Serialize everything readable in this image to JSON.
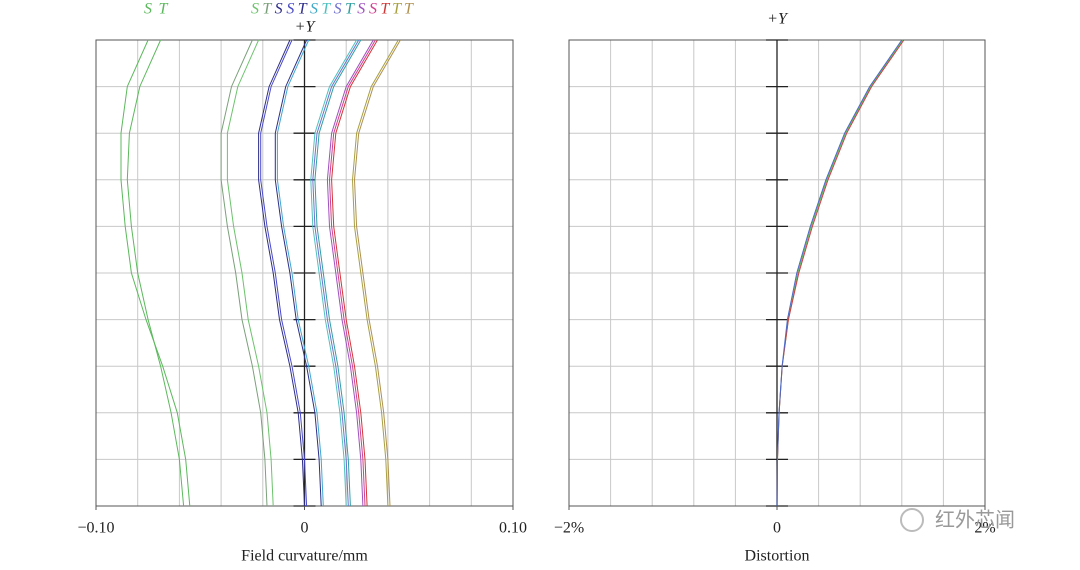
{
  "chart_data": [
    {
      "type": "line",
      "x_label": "Field curvature/mm",
      "axis_label": "+Y",
      "xlim": [
        -0.1,
        0.1
      ],
      "xticks": [
        {
          "value": -0.1,
          "label": "−0.10"
        },
        0,
        {
          "value": 0.1,
          "label": "0.10"
        }
      ],
      "ylim": [
        0,
        1
      ],
      "y": [
        0,
        0.1,
        0.2,
        0.3,
        0.4,
        0.5,
        0.6,
        0.7,
        0.8,
        0.9,
        1.0
      ],
      "grid": true,
      "series": [
        {
          "name": "S",
          "color": "#5cb85c",
          "values": [
            -0.055,
            -0.057,
            -0.061,
            -0.068,
            -0.076,
            -0.083,
            -0.086,
            -0.088,
            -0.088,
            -0.085,
            -0.075
          ]
        },
        {
          "name": "T",
          "color": "#5cb85c",
          "values": [
            -0.058,
            -0.06,
            -0.064,
            -0.069,
            -0.075,
            -0.08,
            -0.083,
            -0.085,
            -0.084,
            -0.079,
            -0.069
          ]
        },
        {
          "name": "S",
          "color": "#6cc36c",
          "values": [
            -0.015,
            -0.016,
            -0.018,
            -0.022,
            -0.027,
            -0.03,
            -0.034,
            -0.037,
            -0.037,
            -0.032,
            -0.022
          ]
        },
        {
          "name": "T",
          "color": "#7aa07a",
          "values": [
            -0.018,
            -0.019,
            -0.021,
            -0.025,
            -0.03,
            -0.033,
            -0.037,
            -0.04,
            -0.04,
            -0.035,
            -0.025
          ]
        },
        {
          "name": "S",
          "color": "#2e2e8a",
          "values": [
            0,
            -0.001,
            -0.003,
            -0.007,
            -0.012,
            -0.015,
            -0.019,
            -0.022,
            -0.022,
            -0.017,
            -0.007
          ]
        },
        {
          "name": "S",
          "color": "#4a4ac8",
          "values": [
            0.001,
            0,
            -0.002,
            -0.006,
            -0.011,
            -0.014,
            -0.018,
            -0.021,
            -0.021,
            -0.016,
            -0.006
          ]
        },
        {
          "name": "T",
          "color": "#2e2e8a",
          "values": [
            0.008,
            0.007,
            0.005,
            0.001,
            -0.004,
            -0.007,
            -0.011,
            -0.014,
            -0.014,
            -0.009,
            0.001
          ]
        },
        {
          "name": "S",
          "color": "#3fa9c9",
          "values": [
            0.009,
            0.008,
            0.006,
            0.002,
            -0.003,
            -0.006,
            -0.01,
            -0.013,
            -0.013,
            -0.008,
            0.002
          ]
        },
        {
          "name": "T",
          "color": "#4fc0c0",
          "values": [
            0.02,
            0.019,
            0.017,
            0.014,
            0.01,
            0.007,
            0.004,
            0.003,
            0.005,
            0.012,
            0.025
          ]
        },
        {
          "name": "S",
          "color": "#7070d0",
          "values": [
            0.021,
            0.02,
            0.018,
            0.015,
            0.011,
            0.008,
            0.005,
            0.004,
            0.006,
            0.013,
            0.026
          ]
        },
        {
          "name": "T",
          "color": "#2fa0a0",
          "values": [
            0.022,
            0.021,
            0.019,
            0.016,
            0.012,
            0.009,
            0.006,
            0.005,
            0.007,
            0.014,
            0.027
          ]
        },
        {
          "name": "S",
          "color": "#a050c0",
          "values": [
            0.028,
            0.027,
            0.025,
            0.022,
            0.018,
            0.015,
            0.012,
            0.011,
            0.013,
            0.02,
            0.033
          ]
        },
        {
          "name": "S",
          "color": "#d04090",
          "values": [
            0.029,
            0.028,
            0.026,
            0.023,
            0.019,
            0.016,
            0.013,
            0.012,
            0.014,
            0.021,
            0.034
          ]
        },
        {
          "name": "T",
          "color": "#d03838",
          "values": [
            0.03,
            0.029,
            0.027,
            0.024,
            0.02,
            0.017,
            0.014,
            0.013,
            0.015,
            0.022,
            0.035
          ]
        },
        {
          "name": "T",
          "color": "#a8a040",
          "values": [
            0.04,
            0.039,
            0.037,
            0.034,
            0.03,
            0.027,
            0.024,
            0.023,
            0.025,
            0.032,
            0.045
          ]
        },
        {
          "name": "T",
          "color": "#b09050",
          "values": [
            0.041,
            0.04,
            0.038,
            0.035,
            0.031,
            0.028,
            0.025,
            0.024,
            0.026,
            0.033,
            0.046
          ]
        }
      ]
    },
    {
      "type": "line",
      "x_label": "Distortion",
      "axis_label": "+Y",
      "xlim": [
        -2,
        2
      ],
      "xticks": [
        {
          "value": -2,
          "label": "−2%"
        },
        0,
        {
          "value": 2,
          "label": "2%"
        }
      ],
      "ylim": [
        0,
        1
      ],
      "y": [
        0,
        0.1,
        0.2,
        0.3,
        0.4,
        0.5,
        0.6,
        0.7,
        0.8,
        0.9,
        1.0
      ],
      "grid": true,
      "series": [
        {
          "color": "#5cb85c",
          "values": [
            0,
            0.005,
            0.02,
            0.05,
            0.11,
            0.2,
            0.33,
            0.48,
            0.66,
            0.9,
            1.21
          ]
        },
        {
          "color": "#d04040",
          "values": [
            0,
            0.005,
            0.02,
            0.05,
            0.11,
            0.21,
            0.34,
            0.49,
            0.67,
            0.91,
            1.22
          ]
        },
        {
          "color": "#4a6ac8",
          "values": [
            0,
            0.004,
            0.019,
            0.049,
            0.1,
            0.19,
            0.32,
            0.47,
            0.65,
            0.89,
            1.2
          ]
        }
      ]
    }
  ],
  "watermark": "红外芯闻"
}
